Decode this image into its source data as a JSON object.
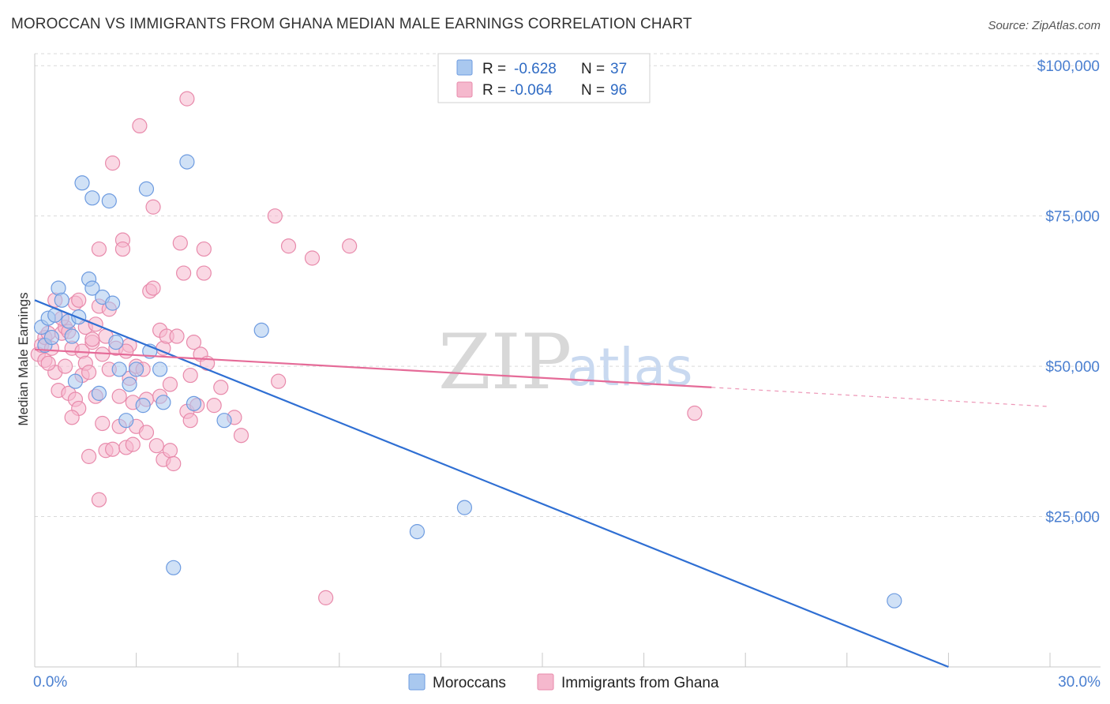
{
  "header": {
    "title": "MOROCCAN VS IMMIGRANTS FROM GHANA MEDIAN MALE EARNINGS CORRELATION CHART",
    "source": "Source: ZipAtlas.com"
  },
  "watermark": {
    "zip": "ZIP",
    "atlas": "atlas"
  },
  "colors": {
    "blue": "#2f6fd3",
    "blue_fill": "#a9c8ef",
    "pink": "#e56b98",
    "pink_fill": "#f5b8cd",
    "tick": "#4a7fd0",
    "grid": "#d9d9d9"
  },
  "legend": {
    "series": [
      {
        "r_label": "R =",
        "r_value": "-0.628",
        "n_label": "N =",
        "n_value": "37"
      },
      {
        "r_label": "R =",
        "r_value": "-0.064",
        "n_label": "N =",
        "n_value": "96"
      }
    ]
  },
  "bottom_legend": [
    "Moroccans",
    "Immigrants from Ghana"
  ],
  "chart_data": {
    "type": "scatter",
    "title": "MOROCCAN VS IMMIGRANTS FROM GHANA MEDIAN MALE EARNINGS CORRELATION CHART",
    "xlabel": "",
    "ylabel": "Median Male Earnings",
    "xlim": [
      0,
      30
    ],
    "ylim": [
      0,
      102000
    ],
    "x_tick_labels": [
      "0.0%",
      "30.0%"
    ],
    "y_ticks": [
      25000,
      50000,
      75000,
      100000
    ],
    "y_tick_labels": [
      "$25,000",
      "$50,000",
      "$75,000",
      "$100,000"
    ],
    "grid": true,
    "series": [
      {
        "name": "Moroccans",
        "color": "#2f6fd3",
        "r": -0.628,
        "n": 37,
        "trend": {
          "x": [
            0,
            27
          ],
          "y": [
            61000,
            0
          ],
          "dashed_extension": false
        },
        "points": [
          [
            0.2,
            56500
          ],
          [
            0.3,
            53500
          ],
          [
            0.4,
            58000
          ],
          [
            0.6,
            58500
          ],
          [
            0.7,
            63000
          ],
          [
            0.8,
            61000
          ],
          [
            1.0,
            57500
          ],
          [
            1.1,
            55000
          ],
          [
            1.2,
            47500
          ],
          [
            1.4,
            80500
          ],
          [
            1.7,
            78000
          ],
          [
            1.6,
            64500
          ],
          [
            1.7,
            63000
          ],
          [
            1.9,
            45500
          ],
          [
            2.0,
            61500
          ],
          [
            2.2,
            77500
          ],
          [
            2.3,
            60500
          ],
          [
            2.4,
            54000
          ],
          [
            2.5,
            49500
          ],
          [
            2.7,
            41000
          ],
          [
            2.8,
            47000
          ],
          [
            3.0,
            49500
          ],
          [
            3.2,
            43500
          ],
          [
            3.3,
            79500
          ],
          [
            3.4,
            52500
          ],
          [
            3.7,
            49500
          ],
          [
            3.8,
            44000
          ],
          [
            4.1,
            16500
          ],
          [
            4.5,
            84000
          ],
          [
            4.7,
            43800
          ],
          [
            5.6,
            41000
          ],
          [
            6.7,
            56000
          ],
          [
            11.3,
            22500
          ],
          [
            12.7,
            26500
          ],
          [
            25.4,
            11000
          ],
          [
            0.5,
            54800
          ],
          [
            1.3,
            58200
          ]
        ]
      },
      {
        "name": "Immigrants from Ghana",
        "color": "#e56b98",
        "r": -0.064,
        "n": 96,
        "trend": {
          "x": [
            0,
            20
          ],
          "y": [
            52800,
            46500
          ],
          "dashed_to": [
            30,
            43300
          ]
        },
        "points": [
          [
            0.1,
            52000
          ],
          [
            0.2,
            53500
          ],
          [
            0.3,
            54800
          ],
          [
            0.3,
            51000
          ],
          [
            0.4,
            55500
          ],
          [
            0.5,
            53000
          ],
          [
            0.6,
            61000
          ],
          [
            0.6,
            49000
          ],
          [
            0.7,
            46000
          ],
          [
            0.8,
            55500
          ],
          [
            0.9,
            50000
          ],
          [
            0.9,
            56500
          ],
          [
            1.0,
            55800
          ],
          [
            1.0,
            45500
          ],
          [
            1.1,
            53000
          ],
          [
            1.2,
            60500
          ],
          [
            1.2,
            44500
          ],
          [
            1.3,
            61000
          ],
          [
            1.3,
            43000
          ],
          [
            1.4,
            52500
          ],
          [
            1.4,
            48500
          ],
          [
            1.5,
            56500
          ],
          [
            1.5,
            50500
          ],
          [
            1.6,
            49000
          ],
          [
            1.6,
            35000
          ],
          [
            1.7,
            54000
          ],
          [
            1.8,
            57000
          ],
          [
            1.8,
            45000
          ],
          [
            1.9,
            69500
          ],
          [
            1.9,
            60000
          ],
          [
            1.9,
            27800
          ],
          [
            2.0,
            52000
          ],
          [
            2.0,
            40500
          ],
          [
            2.1,
            55000
          ],
          [
            2.1,
            36000
          ],
          [
            2.2,
            59500
          ],
          [
            2.2,
            49500
          ],
          [
            2.3,
            83800
          ],
          [
            2.3,
            36200
          ],
          [
            2.4,
            53000
          ],
          [
            2.5,
            45000
          ],
          [
            2.5,
            40000
          ],
          [
            2.6,
            71000
          ],
          [
            2.6,
            69500
          ],
          [
            2.7,
            36500
          ],
          [
            2.8,
            53500
          ],
          [
            2.8,
            48000
          ],
          [
            2.9,
            44000
          ],
          [
            3.0,
            40000
          ],
          [
            3.0,
            50000
          ],
          [
            3.1,
            90000
          ],
          [
            3.2,
            49500
          ],
          [
            3.3,
            44500
          ],
          [
            3.4,
            62500
          ],
          [
            3.5,
            76500
          ],
          [
            3.5,
            63000
          ],
          [
            3.6,
            36800
          ],
          [
            3.7,
            56000
          ],
          [
            3.7,
            45000
          ],
          [
            3.8,
            34500
          ],
          [
            3.8,
            53000
          ],
          [
            3.9,
            55000
          ],
          [
            4.0,
            47000
          ],
          [
            4.0,
            36000
          ],
          [
            4.1,
            33800
          ],
          [
            4.2,
            55000
          ],
          [
            4.3,
            70500
          ],
          [
            4.4,
            65500
          ],
          [
            4.5,
            94500
          ],
          [
            4.5,
            42500
          ],
          [
            4.6,
            48500
          ],
          [
            4.7,
            54000
          ],
          [
            4.8,
            43500
          ],
          [
            4.9,
            52000
          ],
          [
            5.0,
            65500
          ],
          [
            5.0,
            69500
          ],
          [
            5.1,
            50500
          ],
          [
            5.3,
            43500
          ],
          [
            5.9,
            41500
          ],
          [
            6.1,
            38500
          ],
          [
            7.1,
            75000
          ],
          [
            7.2,
            47500
          ],
          [
            7.5,
            70000
          ],
          [
            8.2,
            68000
          ],
          [
            8.6,
            11500
          ],
          [
            9.3,
            70000
          ],
          [
            19.5,
            42200
          ],
          [
            0.4,
            50500
          ],
          [
            0.8,
            58000
          ],
          [
            1.1,
            41500
          ],
          [
            2.7,
            52500
          ],
          [
            3.3,
            39000
          ],
          [
            4.6,
            41000
          ],
          [
            5.5,
            46500
          ],
          [
            1.7,
            54500
          ],
          [
            2.9,
            37000
          ]
        ]
      }
    ]
  }
}
